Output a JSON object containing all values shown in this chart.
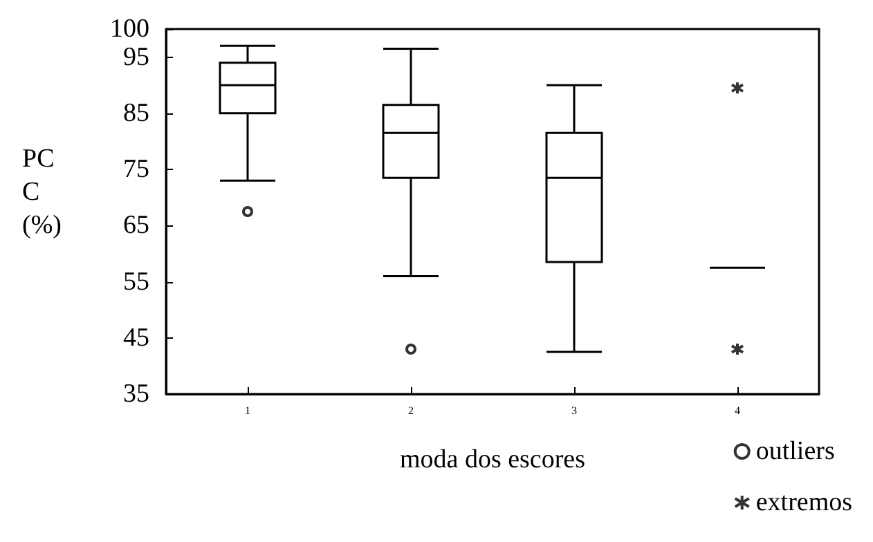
{
  "chart_data": {
    "type": "box",
    "categories": [
      "1",
      "2",
      "3",
      "4"
    ],
    "xlabel": "moda dos escores",
    "ylabel": "PCC (%)",
    "ylim": [
      35,
      100
    ],
    "yticks": [
      35,
      45,
      55,
      65,
      75,
      85,
      95,
      100
    ],
    "grid": false,
    "color": "#000000",
    "legend": "bottom right",
    "boxes": [
      {
        "low": 73,
        "q1": 85,
        "median": 90,
        "q3": 94,
        "high": 97
      },
      {
        "low": 56,
        "q1": 73.5,
        "median": 81.5,
        "q3": 86.5,
        "high": 96.5
      },
      {
        "low": 42.5,
        "q1": 58.5,
        "median": 73.5,
        "q3": 81.5,
        "high": 90
      },
      {
        "low": 57.5,
        "q1": 57.5,
        "median": 57.5,
        "q3": 57.5,
        "high": 57.5
      }
    ],
    "series": [
      {
        "name": "outliers",
        "type": "scatter",
        "color": "#000000",
        "marker": "circle",
        "x": [
          "1",
          "2"
        ],
        "values": [
          67.5,
          43
        ]
      },
      {
        "name": "extremos",
        "type": "scatter",
        "color": "#000000",
        "marker": "cross",
        "x": [
          "4",
          "4"
        ],
        "values": [
          89.5,
          43
        ]
      }
    ]
  }
}
